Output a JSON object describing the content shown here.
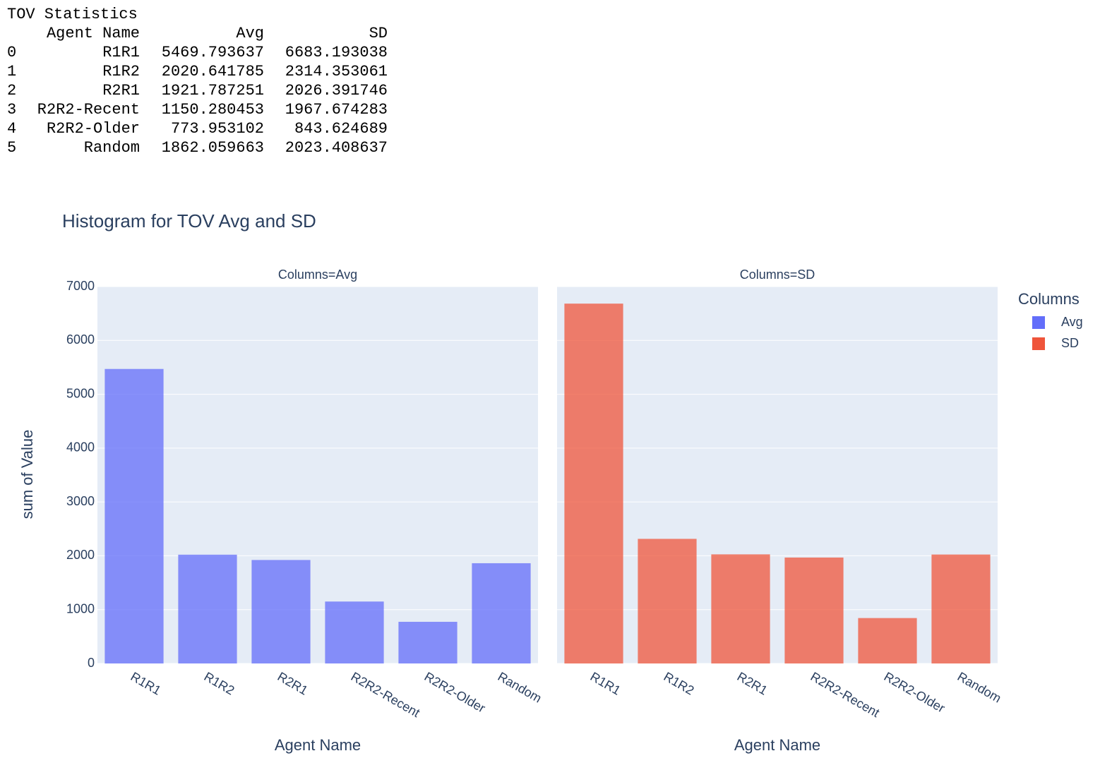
{
  "table": {
    "title": "TOV Statistics",
    "header": [
      "Agent Name",
      "Avg",
      "SD"
    ],
    "rows": [
      [
        "0",
        "R1R1",
        5469.793637,
        6683.193038
      ],
      [
        "1",
        "R1R2",
        2020.641785,
        2314.353061
      ],
      [
        "2",
        "R2R1",
        1921.787251,
        2026.391746
      ],
      [
        "3",
        "R2R2-Recent",
        1150.280453,
        1967.674283
      ],
      [
        "4",
        "R2R2-Older",
        773.953102,
        843.624689
      ],
      [
        "5",
        "Random",
        1862.059663,
        2023.408637
      ]
    ]
  },
  "chart_data": {
    "type": "bar",
    "title": "Histogram for TOV Avg and SD",
    "ylabel": "sum of Value",
    "xlabel": "Agent Name",
    "legend_title": "Columns",
    "categories": [
      "R1R1",
      "R1R2",
      "R2R1",
      "R2R2-Recent",
      "R2R2-Older",
      "Random"
    ],
    "series": [
      {
        "name": "Avg",
        "facet_title": "Columns=Avg",
        "color": "#636efa",
        "values": [
          5469.793637,
          2020.641785,
          1921.787251,
          1150.280453,
          773.953102,
          1862.059663
        ]
      },
      {
        "name": "SD",
        "facet_title": "Columns=SD",
        "color": "#ef553b",
        "values": [
          6683.193038,
          2314.353061,
          2026.391746,
          1967.674283,
          843.624689,
          2023.408637
        ]
      }
    ],
    "ylim": [
      0,
      7000
    ],
    "yticks": [
      0,
      1000,
      2000,
      3000,
      4000,
      5000,
      6000,
      7000
    ],
    "grid": true
  }
}
